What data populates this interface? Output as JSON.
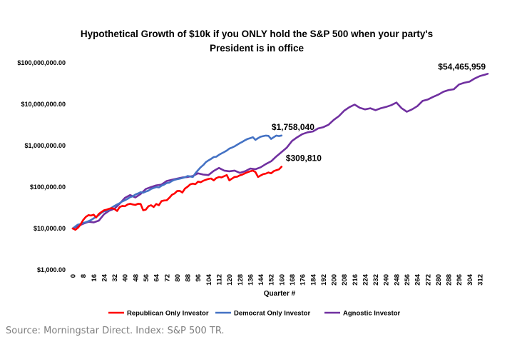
{
  "chart_data": {
    "type": "line",
    "title_line1": "Hypothetical Growth of $10k if you ONLY hold the S&P 500 when your party's",
    "title_line2": "President is in office",
    "xlabel": "Quarter #",
    "ylabel": "",
    "yscale": "log",
    "ylim": [
      1000,
      100000000
    ],
    "xlim": [
      0,
      318
    ],
    "y_ticks": [
      {
        "value": 100000000,
        "label": "$100,000,000.00"
      },
      {
        "value": 10000000,
        "label": "$10,000,000.00"
      },
      {
        "value": 1000000,
        "label": "$1,000,000.00"
      },
      {
        "value": 100000,
        "label": "$100,000.00"
      },
      {
        "value": 10000,
        "label": "$10,000.00"
      },
      {
        "value": 1000,
        "label": "$1,000.00"
      }
    ],
    "x_ticks": [
      0,
      8,
      16,
      24,
      32,
      40,
      48,
      56,
      64,
      72,
      80,
      88,
      96,
      104,
      112,
      120,
      128,
      136,
      144,
      152,
      160,
      168,
      176,
      184,
      192,
      200,
      208,
      216,
      224,
      232,
      240,
      248,
      256,
      264,
      272,
      280,
      288,
      296,
      304,
      312
    ],
    "grid": false,
    "legend_position": "bottom",
    "series": [
      {
        "name": "Republican Only Investor",
        "color": "#ff0000",
        "x": [
          0,
          2,
          4,
          6,
          8,
          10,
          12,
          14,
          16,
          18,
          20,
          22,
          24,
          26,
          28,
          30,
          32,
          34,
          36,
          38,
          40,
          42,
          44,
          46,
          48,
          50,
          52,
          54,
          56,
          58,
          60,
          62,
          64,
          66,
          68,
          70,
          72,
          74,
          76,
          78,
          80,
          82,
          84,
          86,
          88,
          90,
          92,
          94,
          96,
          98,
          100,
          102,
          104,
          106,
          108,
          110,
          112,
          114,
          116,
          118,
          120,
          122,
          124,
          126,
          128,
          130,
          132,
          134,
          136,
          138,
          140,
          142,
          144,
          146,
          148,
          150,
          152,
          154,
          156,
          158,
          160
        ],
        "values": [
          10000,
          9300,
          10400,
          12500,
          16000,
          19000,
          21000,
          20500,
          21500,
          18500,
          22500,
          25000,
          27500,
          28500,
          30000,
          31000,
          29500,
          26500,
          33000,
          35000,
          34500,
          38000,
          39500,
          38000,
          37000,
          39500,
          39000,
          27500,
          28500,
          34500,
          36500,
          33000,
          39000,
          36500,
          46000,
          47500,
          48000,
          55000,
          65000,
          70000,
          80000,
          81000,
          74000,
          92000,
          102000,
          116000,
          121000,
          117000,
          135000,
          131000,
          142000,
          150000,
          157000,
          161000,
          145000,
          165000,
          175000,
          171000,
          183000,
          195000,
          145000,
          160000,
          175000,
          178000,
          192000,
          200000,
          215000,
          228000,
          240000,
          250000,
          230000,
          175000,
          190000,
          205000,
          212000,
          225000,
          215000,
          242000,
          255000,
          268000,
          309810
        ]
      },
      {
        "name": "Democrat Only Investor",
        "color": "#4472c4",
        "x": [
          0,
          2,
          4,
          6,
          8,
          10,
          12,
          14,
          16,
          18,
          20,
          22,
          24,
          26,
          28,
          30,
          32,
          34,
          36,
          38,
          40,
          42,
          44,
          46,
          48,
          50,
          52,
          54,
          56,
          58,
          60,
          62,
          64,
          66,
          68,
          70,
          72,
          74,
          76,
          78,
          80,
          82,
          84,
          86,
          88,
          90,
          92,
          94,
          96,
          98,
          100,
          102,
          104,
          106,
          108,
          110,
          112,
          114,
          116,
          118,
          120,
          122,
          124,
          126,
          128,
          130,
          132,
          134,
          136,
          138,
          140,
          142,
          144,
          146,
          148,
          150,
          152,
          154,
          156,
          158,
          160
        ],
        "values": [
          10000,
          11200,
          12400,
          12800,
          13500,
          14200,
          15000,
          16000,
          17500,
          19000,
          21000,
          24000,
          26000,
          26500,
          29000,
          32000,
          35000,
          38000,
          41000,
          45000,
          48000,
          52000,
          57000,
          60000,
          66000,
          70000,
          75000,
          73000,
          78000,
          82000,
          90000,
          95000,
          100000,
          98000,
          108000,
          115000,
          125000,
          128000,
          140000,
          150000,
          155000,
          160000,
          165000,
          172000,
          185000,
          180000,
          175000,
          215000,
          255000,
          300000,
          340000,
          400000,
          440000,
          480000,
          530000,
          540000,
          600000,
          650000,
          700000,
          760000,
          850000,
          900000,
          960000,
          1050000,
          1150000,
          1240000,
          1350000,
          1450000,
          1520000,
          1600000,
          1380000,
          1520000,
          1640000,
          1700000,
          1750000,
          1720000,
          1450000,
          1600000,
          1750000,
          1700000,
          1758040
        ]
      },
      {
        "name": "Agnostic Investor",
        "color": "#7030a0",
        "x": [
          0,
          4,
          8,
          12,
          16,
          20,
          24,
          28,
          32,
          36,
          40,
          44,
          48,
          52,
          56,
          60,
          64,
          68,
          72,
          76,
          80,
          84,
          88,
          92,
          96,
          100,
          104,
          108,
          112,
          116,
          120,
          124,
          128,
          132,
          136,
          140,
          144,
          148,
          152,
          156,
          160,
          164,
          168,
          172,
          176,
          180,
          184,
          188,
          192,
          196,
          200,
          204,
          208,
          212,
          216,
          220,
          224,
          228,
          232,
          236,
          240,
          244,
          248,
          252,
          256,
          260,
          264,
          268,
          272,
          276,
          280,
          284,
          288,
          292,
          296,
          300,
          304,
          308,
          312,
          316,
          318
        ],
        "values": [
          10000,
          11500,
          13000,
          14500,
          14000,
          15500,
          22000,
          27000,
          30000,
          40000,
          55000,
          64000,
          56000,
          68000,
          90000,
          100000,
          110000,
          115000,
          140000,
          150000,
          160000,
          170000,
          175000,
          185000,
          215000,
          200000,
          195000,
          245000,
          290000,
          250000,
          240000,
          250000,
          220000,
          240000,
          280000,
          270000,
          300000,
          360000,
          420000,
          550000,
          700000,
          900000,
          1300000,
          1600000,
          1900000,
          2100000,
          2200000,
          2600000,
          2800000,
          3200000,
          4200000,
          5200000,
          7000000,
          8500000,
          9800000,
          8200000,
          7500000,
          8000000,
          7200000,
          8000000,
          8600000,
          9500000,
          11000000,
          8000000,
          6600000,
          7500000,
          9000000,
          12000000,
          13000000,
          15000000,
          17000000,
          20000000,
          22000000,
          23000000,
          30000000,
          33000000,
          35000000,
          42000000,
          48000000,
          52000000,
          54465959
        ]
      }
    ],
    "end_labels": [
      {
        "series": "Agnostic Investor",
        "text": "$54,465,959"
      },
      {
        "series": "Democrat Only Investor",
        "text": "$1,758,040"
      },
      {
        "series": "Republican Only Investor",
        "text": "$309,810"
      }
    ]
  },
  "source_note": "Source: Morningstar Direct. Index: S&P 500 TR."
}
